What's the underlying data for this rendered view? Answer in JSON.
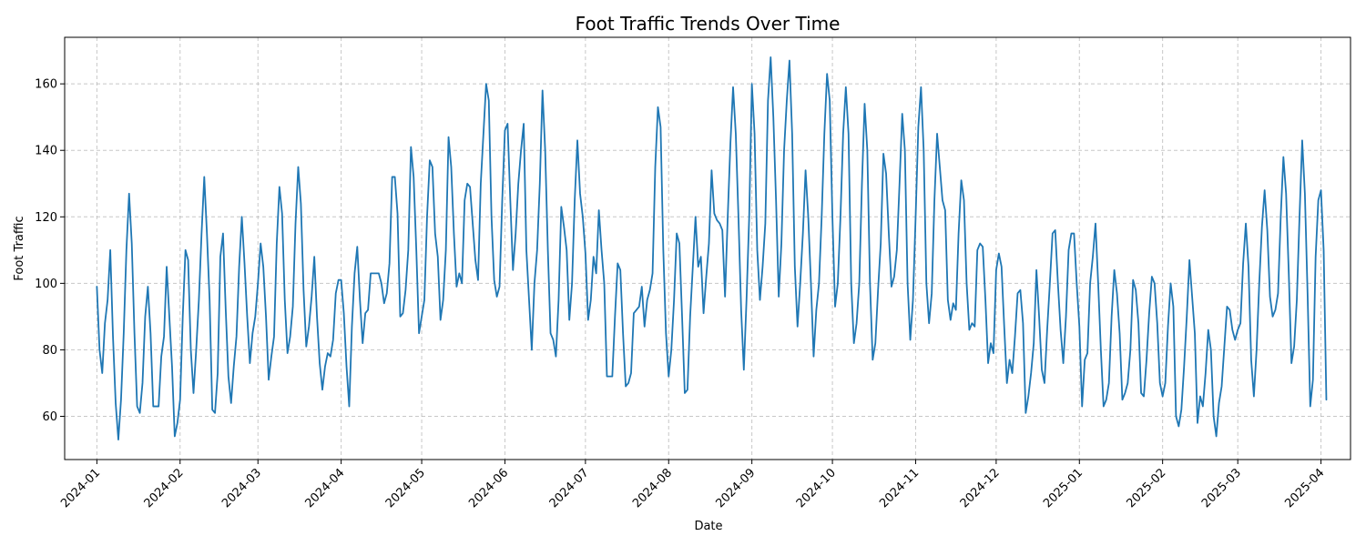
{
  "chart_data": {
    "type": "line",
    "title": "Foot Traffic Trends Over Time",
    "xlabel": "Date",
    "ylabel": "Foot Traffic",
    "xlim": [
      "2023-12-20",
      "2025-04-12"
    ],
    "ylim": [
      47,
      174
    ],
    "grid": true,
    "x_ticks": [
      "2024-01",
      "2024-02",
      "2024-03",
      "2024-04",
      "2024-05",
      "2024-06",
      "2024-07",
      "2024-08",
      "2024-09",
      "2024-10",
      "2024-11",
      "2024-12",
      "2025-01",
      "2025-02",
      "2025-03",
      "2025-04"
    ],
    "y_ticks": [
      60,
      80,
      100,
      120,
      140,
      160
    ],
    "line_color": "#1f77b4",
    "series": [
      {
        "x_start": "2024-01-01",
        "x_step_days": 1,
        "values": [
          99,
          80,
          73,
          88,
          95,
          110,
          84,
          64,
          53,
          65,
          85,
          110,
          127,
          112,
          85,
          63,
          61,
          70,
          90,
          99,
          85,
          63,
          63,
          63,
          78,
          84,
          105,
          90,
          75,
          54,
          58,
          65,
          90,
          110,
          107,
          80,
          67,
          80,
          95,
          115,
          132,
          115,
          95,
          62,
          61,
          73,
          108,
          115,
          92,
          72,
          64,
          75,
          84,
          105,
          120,
          106,
          90,
          76,
          85,
          90,
          100,
          112,
          105,
          90,
          71,
          78,
          84,
          112,
          129,
          121,
          95,
          79,
          84,
          93,
          118,
          135,
          124,
          98,
          81,
          87,
          96,
          108,
          90,
          76,
          68,
          75,
          79,
          78,
          83,
          97,
          101,
          101,
          91,
          75,
          63,
          87,
          103,
          111,
          95,
          82,
          91,
          92,
          103,
          103,
          103,
          103,
          100,
          94,
          97,
          106,
          132,
          132,
          121,
          90,
          91,
          98,
          110,
          141,
          132,
          110,
          85,
          90,
          95,
          120,
          137,
          135,
          115,
          108,
          89,
          95,
          110,
          144,
          135,
          115,
          99,
          103,
          100,
          125,
          130,
          129,
          118,
          107,
          101,
          130,
          145,
          160,
          155,
          120,
          101,
          96,
          99,
          125,
          146,
          148,
          125,
          104,
          115,
          130,
          140,
          148,
          110,
          95,
          80,
          100,
          110,
          130,
          158,
          140,
          110,
          85,
          83,
          78,
          95,
          123,
          117,
          110,
          89,
          100,
          125,
          143,
          127,
          120,
          109,
          89,
          95,
          108,
          103,
          122,
          110,
          100,
          72,
          72,
          72,
          90,
          106,
          104,
          85,
          69,
          70,
          73,
          91,
          92,
          93,
          99,
          87,
          95,
          98,
          103,
          135,
          153,
          147,
          110,
          85,
          72,
          80,
          95,
          115,
          112,
          90,
          67,
          68,
          90,
          105,
          120,
          105,
          108,
          91,
          102,
          112,
          134,
          121,
          119,
          118,
          116,
          96,
          120,
          142,
          159,
          145,
          120,
          92,
          74,
          95,
          120,
          160,
          145,
          110,
          95,
          105,
          118,
          155,
          168,
          150,
          125,
          96,
          112,
          140,
          155,
          167,
          145,
          105,
          87,
          100,
          115,
          134,
          120,
          100,
          78,
          92,
          100,
          120,
          145,
          163,
          155,
          120,
          93,
          100,
          120,
          145,
          159,
          145,
          100,
          82,
          88,
          100,
          130,
          154,
          140,
          100,
          77,
          82,
          98,
          112,
          139,
          133,
          115,
          99,
          102,
          110,
          130,
          151,
          140,
          100,
          83,
          95,
          120,
          147,
          159,
          140,
          100,
          88,
          97,
          125,
          145,
          135,
          125,
          122,
          95,
          89,
          94,
          92,
          115,
          131,
          125,
          100,
          86,
          88,
          87,
          110,
          112,
          111,
          95,
          76,
          82,
          79,
          104,
          109,
          105,
          87,
          70,
          77,
          73,
          84,
          97,
          98,
          88,
          61,
          66,
          73,
          82,
          104,
          90,
          74,
          70,
          86,
          100,
          115,
          116,
          100,
          86,
          76,
          90,
          110,
          115,
          115,
          100,
          87,
          63,
          77,
          79,
          100,
          108,
          118,
          100,
          80,
          63,
          65,
          70,
          90,
          104,
          97,
          85,
          65,
          67,
          70,
          80,
          101,
          98,
          88,
          67,
          66,
          77,
          91,
          102,
          100,
          88,
          70,
          66,
          70,
          87,
          100,
          93,
          60,
          57,
          62,
          75,
          90,
          107,
          96,
          85,
          58,
          66,
          63,
          73,
          86,
          80,
          60,
          54,
          64,
          69,
          81,
          93,
          92,
          86,
          83,
          86,
          88,
          106,
          118,
          105,
          77,
          66,
          80,
          100,
          117,
          128,
          116,
          96,
          90,
          92,
          97,
          120,
          138,
          127,
          103,
          76,
          81,
          95,
          120,
          143,
          127,
          97,
          63,
          71,
          108,
          125,
          128,
          110,
          65
        ]
      }
    ]
  }
}
